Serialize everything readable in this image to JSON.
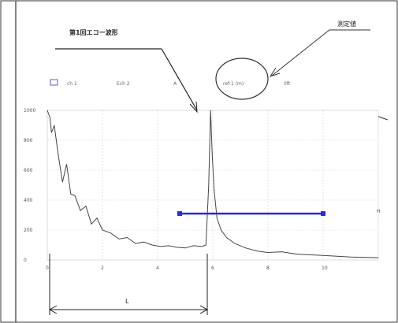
{
  "annotations": {
    "first_echo": "第1回エコー波形",
    "measured_value": "測定値",
    "span_label": "L",
    "right_marker": "H"
  },
  "header": {
    "box_label": "□",
    "items": [
      "ch 1",
      "Ech 2",
      "A",
      "ref-1 (m)",
      "0ft"
    ]
  },
  "chart_data": {
    "type": "line",
    "xlabel": "",
    "ylabel": "",
    "x_ticks": [
      "0",
      "2",
      "4",
      "6",
      "8",
      "10"
    ],
    "y_ticks": [
      "0",
      "200",
      "400",
      "600",
      "800",
      "1000"
    ],
    "xlim": [
      0,
      12
    ],
    "ylim": [
      0,
      1000
    ],
    "series": [
      {
        "x": [
          0.0,
          0.1,
          0.15,
          0.25,
          0.4,
          0.55,
          0.7,
          0.85,
          1.0,
          1.2,
          1.4,
          1.6,
          1.8,
          2.0,
          2.3,
          2.6,
          2.9,
          3.2,
          3.5,
          3.8,
          4.1,
          4.4,
          4.7,
          5.0,
          5.3,
          5.6,
          5.75,
          5.85,
          5.92,
          5.98,
          6.05,
          6.15,
          6.3,
          6.5,
          6.8,
          7.2,
          7.6,
          8.0,
          8.5,
          9.0,
          9.5,
          10.0,
          10.5,
          11.0,
          11.5,
          12.0
        ],
        "y": [
          1000,
          950,
          850,
          900,
          700,
          520,
          640,
          440,
          430,
          330,
          360,
          240,
          280,
          200,
          180,
          140,
          150,
          110,
          120,
          100,
          90,
          95,
          85,
          80,
          95,
          90,
          100,
          500,
          1000,
          700,
          460,
          280,
          200,
          150,
          110,
          80,
          60,
          50,
          55,
          40,
          35,
          30,
          25,
          20,
          18,
          15
        ]
      }
    ],
    "bar_segment": {
      "x": [
        4.8,
        10.0
      ],
      "y": 310
    },
    "grid": true
  }
}
